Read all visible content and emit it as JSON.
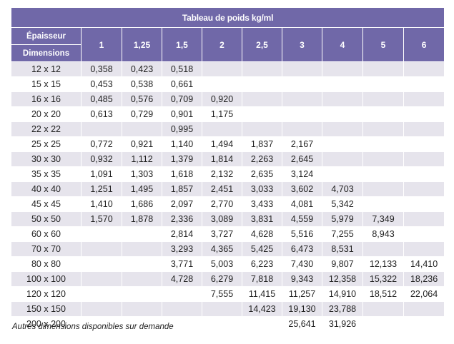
{
  "table": {
    "title": "Tableau de poids kg/ml",
    "label_thickness": "Épaisseur",
    "label_dimensions": "Dimensions",
    "thicknesses": [
      "1",
      "1,25",
      "1,5",
      "2",
      "2,5",
      "3",
      "4",
      "5",
      "6"
    ],
    "rows": [
      {
        "dim": "12 x 12",
        "values": [
          "0,358",
          "0,423",
          "0,518",
          "",
          "",
          "",
          "",
          "",
          ""
        ]
      },
      {
        "dim": "15 x 15",
        "values": [
          "0,453",
          "0,538",
          "0,661",
          "",
          "",
          "",
          "",
          "",
          ""
        ]
      },
      {
        "dim": "16 x 16",
        "values": [
          "0,485",
          "0,576",
          "0,709",
          "0,920",
          "",
          "",
          "",
          "",
          ""
        ]
      },
      {
        "dim": "20 x 20",
        "values": [
          "0,613",
          "0,729",
          "0,901",
          "1,175",
          "",
          "",
          "",
          "",
          ""
        ]
      },
      {
        "dim": "22 x 22",
        "values": [
          "",
          "",
          "0,995",
          "",
          "",
          "",
          "",
          "",
          ""
        ]
      },
      {
        "dim": "25 x 25",
        "values": [
          "0,772",
          "0,921",
          "1,140",
          "1,494",
          "1,837",
          "2,167",
          "",
          "",
          ""
        ]
      },
      {
        "dim": "30 x 30",
        "values": [
          "0,932",
          "1,112",
          "1,379",
          "1,814",
          "2,263",
          "2,645",
          "",
          "",
          ""
        ]
      },
      {
        "dim": "35 x 35",
        "values": [
          "1,091",
          "1,303",
          "1,618",
          "2,132",
          "2,635",
          "3,124",
          "",
          "",
          ""
        ]
      },
      {
        "dim": "40 x 40",
        "values": [
          "1,251",
          "1,495",
          "1,857",
          "2,451",
          "3,033",
          "3,602",
          "4,703",
          "",
          ""
        ]
      },
      {
        "dim": "45 x 45",
        "values": [
          "1,410",
          "1,686",
          "2,097",
          "2,770",
          "3,433",
          "4,081",
          "5,342",
          "",
          ""
        ]
      },
      {
        "dim": "50 x 50",
        "values": [
          "1,570",
          "1,878",
          "2,336",
          "3,089",
          "3,831",
          "4,559",
          "5,979",
          "7,349",
          ""
        ]
      },
      {
        "dim": "60 x 60",
        "values": [
          "",
          "",
          "2,814",
          "3,727",
          "4,628",
          "5,516",
          "7,255",
          "8,943",
          ""
        ]
      },
      {
        "dim": "70 x 70",
        "values": [
          "",
          "",
          "3,293",
          "4,365",
          "5,425",
          "6,473",
          "8,531",
          "",
          ""
        ]
      },
      {
        "dim": "80 x 80",
        "values": [
          "",
          "",
          "3,771",
          "5,003",
          "6,223",
          "7,430",
          "9,807",
          "12,133",
          "14,410"
        ]
      },
      {
        "dim": "100 x 100",
        "values": [
          "",
          "",
          "4,728",
          "6,279",
          "7,818",
          "9,343",
          "12,358",
          "15,322",
          "18,236"
        ]
      },
      {
        "dim": "120 x 120",
        "values": [
          "",
          "",
          "",
          "7,555",
          "11,415",
          "11,257",
          "14,910",
          "18,512",
          "22,064"
        ]
      },
      {
        "dim": "150 x 150",
        "values": [
          "",
          "",
          "",
          "",
          "14,423",
          "19,130",
          "23,788",
          "",
          ""
        ]
      },
      {
        "dim": "200 x 200",
        "values": [
          "",
          "",
          "",
          "",
          "",
          "25,641",
          "31,926",
          "",
          ""
        ]
      }
    ]
  },
  "footnote": "Autres dimensions disponibles sur demande",
  "colors": {
    "header": "#7068a8",
    "stripe": "#e6e4ec"
  }
}
